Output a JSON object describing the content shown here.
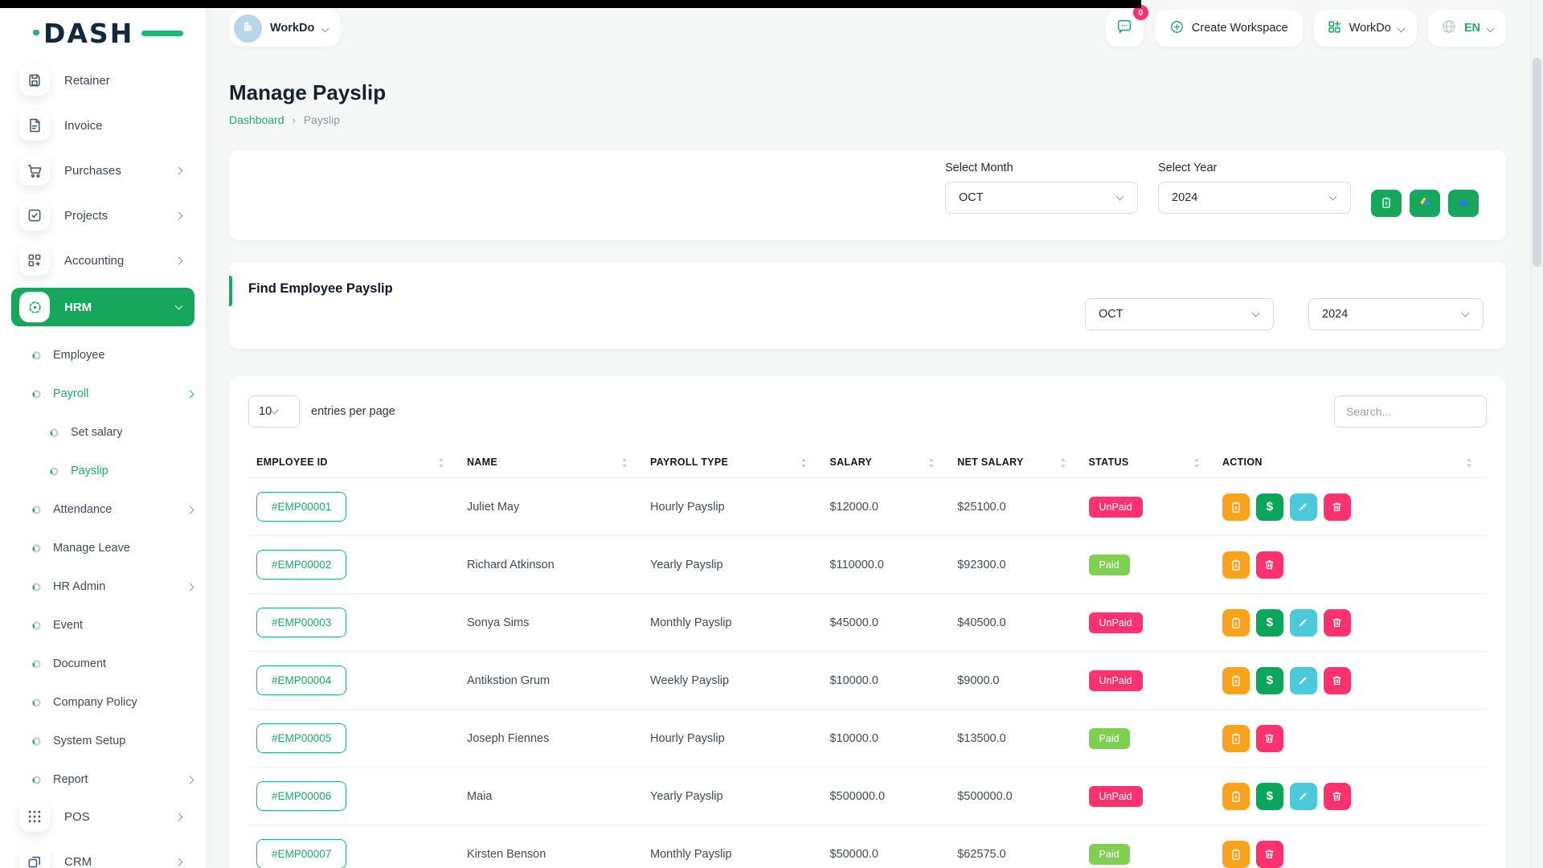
{
  "colors": {
    "primary_green": "#16A75C",
    "link_green": "#1FAE66",
    "paid_green": "#7ED04F",
    "unpaid_pink": "#FF316E",
    "action_orange": "#F9A31A",
    "action_cyan": "#4AC9DA",
    "navy": "#13273F"
  },
  "brand": {
    "logo_text": "DASH"
  },
  "topbar": {
    "workspace": {
      "name": "WorkDo"
    },
    "notification_badge": "0",
    "create_workspace_label": "Create Workspace",
    "workspace_menu_label": "WorkDo",
    "language_label": "EN"
  },
  "sidebar": {
    "items": [
      {
        "label": "Retainer",
        "icon": "floppy",
        "type": "main"
      },
      {
        "label": "Invoice",
        "icon": "invoice",
        "type": "main"
      },
      {
        "label": "Purchases",
        "icon": "cart",
        "type": "main",
        "chevron": "right"
      },
      {
        "label": "Projects",
        "icon": "check-square",
        "type": "main",
        "chevron": "right"
      },
      {
        "label": "Accounting",
        "icon": "grid-plus",
        "type": "main",
        "chevron": "right"
      },
      {
        "label": "HRM",
        "icon": "hrm",
        "type": "main",
        "chevron": "down",
        "active": true
      },
      {
        "label": "Employee",
        "type": "sub",
        "level": 1
      },
      {
        "label": "Payroll",
        "type": "sub",
        "level": 1,
        "active": true,
        "chevron": "right"
      },
      {
        "label": "Set salary",
        "type": "sub",
        "level": 2
      },
      {
        "label": "Payslip",
        "type": "sub",
        "level": 2,
        "active": true
      },
      {
        "label": "Attendance",
        "type": "sub",
        "level": 1,
        "chevron": "right"
      },
      {
        "label": "Manage Leave",
        "type": "sub",
        "level": 1
      },
      {
        "label": "HR Admin",
        "type": "sub",
        "level": 1,
        "chevron": "right"
      },
      {
        "label": "Event",
        "type": "sub",
        "level": 1
      },
      {
        "label": "Document",
        "type": "sub",
        "level": 1
      },
      {
        "label": "Company Policy",
        "type": "sub",
        "level": 1
      },
      {
        "label": "System Setup",
        "type": "sub",
        "level": 1
      },
      {
        "label": "Report",
        "type": "sub",
        "level": 1,
        "chevron": "right"
      },
      {
        "label": "POS",
        "icon": "pos",
        "type": "main",
        "chevron": "right"
      },
      {
        "label": "CRM",
        "icon": "crm",
        "type": "main",
        "chevron": "right"
      }
    ]
  },
  "page": {
    "title": "Manage Payslip",
    "breadcrumb_home": "Dashboard",
    "breadcrumb_current": "Payslip"
  },
  "filter_card": {
    "month_label": "Select Month",
    "month_value": "OCT",
    "year_label": "Select Year",
    "year_value": "2024",
    "export_buttons": [
      "payslip-export",
      "google-drive-export",
      "onedrive-export"
    ]
  },
  "find_card": {
    "title": "Find Employee Payslip",
    "month_value": "OCT",
    "year_value": "2024"
  },
  "table": {
    "page_size": "10",
    "entries_label": "entries per page",
    "search_placeholder": "Search...",
    "columns": [
      "EMPLOYEE ID",
      "NAME",
      "PAYROLL TYPE",
      "SALARY",
      "NET SALARY",
      "STATUS",
      "ACTION"
    ],
    "rows": [
      {
        "id": "#EMP00001",
        "name": "Juliet May",
        "type": "Hourly Payslip",
        "salary": "$12000.0",
        "net": "$25100.0",
        "status": "UnPaid",
        "actions": [
          "receipt",
          "pay",
          "edit",
          "delete"
        ]
      },
      {
        "id": "#EMP00002",
        "name": "Richard Atkinson",
        "type": "Yearly Payslip",
        "salary": "$110000.0",
        "net": "$92300.0",
        "status": "Paid",
        "actions": [
          "receipt",
          "delete"
        ]
      },
      {
        "id": "#EMP00003",
        "name": "Sonya Sims",
        "type": "Monthly Payslip",
        "salary": "$45000.0",
        "net": "$40500.0",
        "status": "UnPaid",
        "actions": [
          "receipt",
          "pay",
          "edit",
          "delete"
        ]
      },
      {
        "id": "#EMP00004",
        "name": "Antikstion Grum",
        "type": "Weekly Payslip",
        "salary": "$10000.0",
        "net": "$9000.0",
        "status": "UnPaid",
        "actions": [
          "receipt",
          "pay",
          "edit",
          "delete"
        ]
      },
      {
        "id": "#EMP00005",
        "name": "Joseph Fiennes",
        "type": "Hourly Payslip",
        "salary": "$10000.0",
        "net": "$13500.0",
        "status": "Paid",
        "actions": [
          "receipt",
          "delete"
        ]
      },
      {
        "id": "#EMP00006",
        "name": "Maia",
        "type": "Yearly Payslip",
        "salary": "$500000.0",
        "net": "$500000.0",
        "status": "UnPaid",
        "actions": [
          "receipt",
          "pay",
          "edit",
          "delete"
        ]
      },
      {
        "id": "#EMP00007",
        "name": "Kirsten Benson",
        "type": "Monthly Payslip",
        "salary": "$50000.0",
        "net": "$62575.0",
        "status": "Paid",
        "actions": [
          "receipt",
          "delete"
        ]
      }
    ]
  }
}
